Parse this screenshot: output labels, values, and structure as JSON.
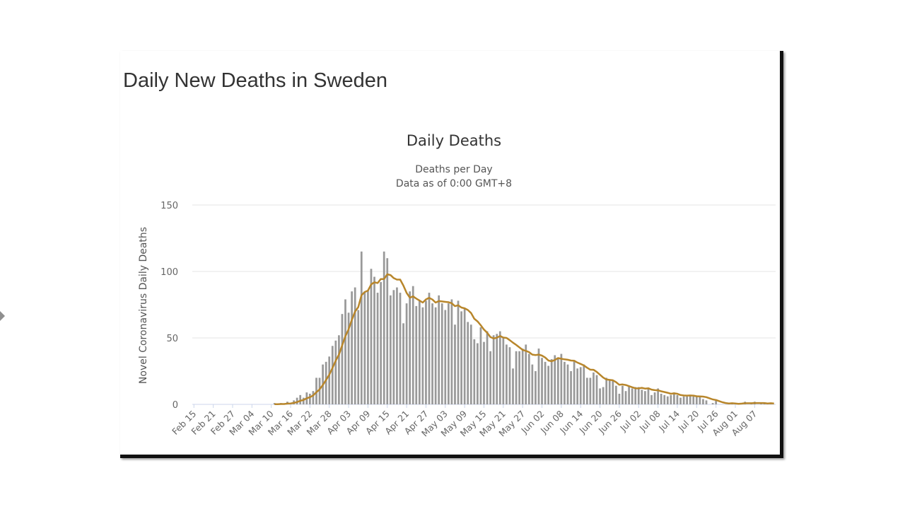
{
  "page_title": "Daily New Deaths in Sweden",
  "colors": {
    "bar": "#999999",
    "line": "#b8862b",
    "grid": "#e6e6e6",
    "text": "#333333"
  },
  "chart_data": {
    "type": "bar",
    "title": "Daily Deaths",
    "subtitle_lines": [
      "Deaths per Day",
      "Data as of 0:00 GMT+8"
    ],
    "ylabel": "Novel Coronavirus Daily Deaths",
    "xlabel": "",
    "ylim": [
      0,
      150
    ],
    "yticks": [
      0,
      50,
      100,
      150
    ],
    "grid": true,
    "start_date": "Feb 15",
    "xtick_labels": [
      "Feb 15",
      "Feb 21",
      "Feb 27",
      "Mar 04",
      "Mar 10",
      "Mar 16",
      "Mar 22",
      "Mar 28",
      "Apr 03",
      "Apr 09",
      "Apr 15",
      "Apr 21",
      "Apr 27",
      "May 03",
      "May 09",
      "May 15",
      "May 21",
      "May 27",
      "Jun 02",
      "Jun 08",
      "Jun 14",
      "Jun 20",
      "Jun 26",
      "Jul 02",
      "Jul 08",
      "Jul 14",
      "Jul 20",
      "Jul 26",
      "Aug 01",
      "Aug 07"
    ],
    "xtick_every_days": 6,
    "series": [
      {
        "name": "Daily Deaths",
        "type": "bar",
        "values": [
          0,
          0,
          0,
          0,
          0,
          0,
          0,
          0,
          0,
          0,
          0,
          0,
          0,
          0,
          0,
          0,
          0,
          0,
          0,
          0,
          0,
          0,
          0,
          0,
          0,
          1,
          0,
          1,
          0,
          2,
          1,
          3,
          5,
          7,
          5,
          9,
          8,
          10,
          20,
          20,
          30,
          32,
          36,
          44,
          48,
          52,
          68,
          79,
          69,
          85,
          88,
          71,
          115,
          85,
          86,
          102,
          96,
          84,
          92,
          115,
          110,
          82,
          86,
          88,
          84,
          61,
          76,
          85,
          89,
          74,
          78,
          73,
          78,
          84,
          76,
          73,
          82,
          76,
          71,
          76,
          79,
          60,
          78,
          70,
          72,
          62,
          60,
          49,
          46,
          58,
          47,
          55,
          40,
          52,
          53,
          55,
          50,
          45,
          43,
          27,
          40,
          40,
          42,
          45,
          38,
          30,
          25,
          42,
          35,
          32,
          29,
          34,
          37,
          35,
          38,
          32,
          30,
          25,
          33,
          27,
          28,
          30,
          20,
          20,
          24,
          22,
          12,
          13,
          20,
          18,
          18,
          14,
          8,
          14,
          10,
          14,
          12,
          13,
          13,
          11,
          10,
          12,
          7,
          9,
          12,
          8,
          7,
          6,
          7,
          9,
          7,
          5,
          6,
          6,
          7,
          6,
          6,
          6,
          4,
          3,
          0,
          1,
          3,
          0,
          0,
          0,
          1,
          1,
          0,
          1,
          1,
          2,
          0,
          1,
          2,
          0,
          1,
          1,
          0,
          1,
          0
        ]
      },
      {
        "name": "7-day moving average",
        "type": "line",
        "window": 7
      }
    ]
  }
}
